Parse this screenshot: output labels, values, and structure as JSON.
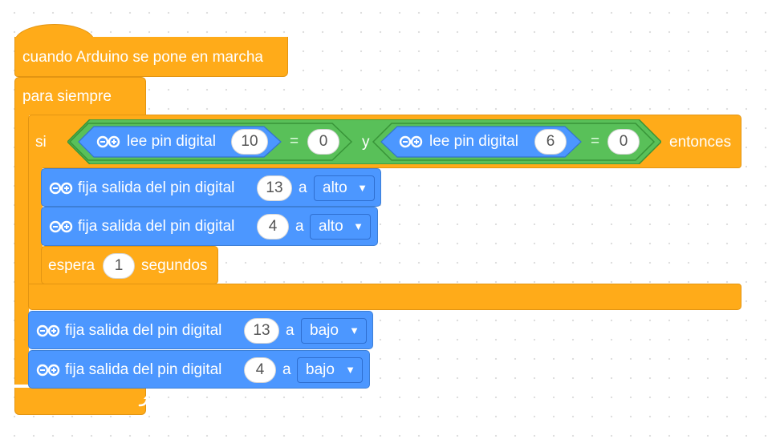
{
  "event_block": {
    "label": "cuando Arduino se pone en marcha"
  },
  "forever_block": {
    "label": "para siempre"
  },
  "if_block": {
    "label_if": "si",
    "label_then": "entonces",
    "label_and": "y",
    "left_condition": {
      "read_label": "lee pin digital",
      "pin": "10",
      "operator": "=",
      "value": "0"
    },
    "right_condition": {
      "read_label": "lee pin digital",
      "pin": "6",
      "operator": "=",
      "value": "0"
    }
  },
  "inner_blocks": [
    {
      "label": "fija salida del pin digital",
      "pin": "13",
      "connector": "a",
      "level": "alto"
    },
    {
      "label": "fija salida del pin digital",
      "pin": "4",
      "connector": "a",
      "level": "alto"
    }
  ],
  "wait_block": {
    "label_pre": "espera",
    "value": "1",
    "label_post": "segundos"
  },
  "after_blocks": [
    {
      "label": "fija salida del pin digital",
      "pin": "13",
      "connector": "a",
      "level": "bajo"
    },
    {
      "label": "fija salida del pin digital",
      "pin": "4",
      "connector": "a",
      "level": "bajo"
    }
  ],
  "icons": {
    "arduino": "infinity-icon",
    "loop": "loop-arrow-icon",
    "dropdown": "triangle-down-icon"
  },
  "colors": {
    "event": "#FFAB19",
    "control": "#FFAB19",
    "arduino": "#4C97FF",
    "operators": "#59C059"
  }
}
